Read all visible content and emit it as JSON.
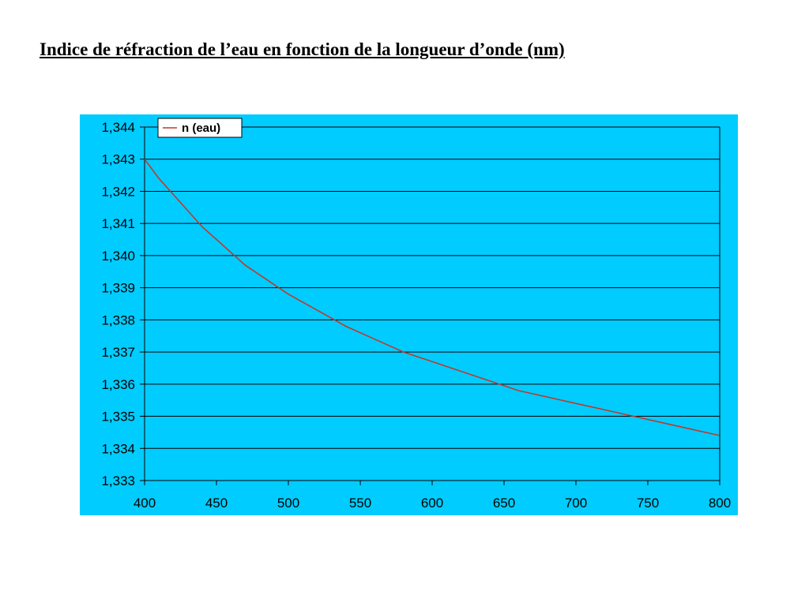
{
  "page": {
    "title": "Indice de réfraction de l’eau en fonction de la longueur d’onde (nm)"
  },
  "colors": {
    "plot_background": "#00CCFF",
    "gridline": "#000000",
    "series_line": "#C0392B",
    "legend_background": "#FFFFFF"
  },
  "chart_data": {
    "type": "line",
    "title": "Indice de réfraction de l’eau en fonction de la longueur d’onde (nm)",
    "xlabel": "",
    "ylabel": "",
    "xlim": [
      400,
      800
    ],
    "ylim": [
      1.333,
      1.344
    ],
    "grid": true,
    "legend_position": "top-left",
    "x_tick_labels": [
      "400",
      "450",
      "500",
      "550",
      "600",
      "650",
      "700",
      "750",
      "800"
    ],
    "y_tick_labels": [
      "1,333",
      "1,334",
      "1,335",
      "1,336",
      "1,337",
      "1,338",
      "1,339",
      "1,340",
      "1,341",
      "1,342",
      "1,343",
      "1,344"
    ],
    "series": [
      {
        "name": "n (eau)",
        "x": [
          400,
          410,
          420,
          430,
          440,
          450,
          460,
          470,
          480,
          490,
          500,
          520,
          540,
          560,
          580,
          600,
          620,
          640,
          660,
          680,
          700,
          720,
          740,
          760,
          780,
          800
        ],
        "y": [
          1.343,
          1.3424,
          1.3419,
          1.3414,
          1.3409,
          1.3405,
          1.3401,
          1.3397,
          1.3394,
          1.3391,
          1.3388,
          1.3383,
          1.3378,
          1.3374,
          1.337,
          1.3367,
          1.3364,
          1.3361,
          1.3358,
          1.3356,
          1.3354,
          1.3352,
          1.335,
          1.3348,
          1.3346,
          1.3344
        ]
      }
    ]
  }
}
